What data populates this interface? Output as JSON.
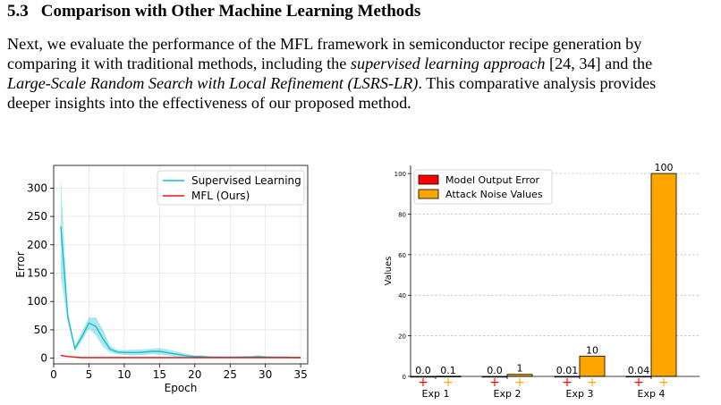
{
  "section": {
    "number": "5.3",
    "title": "Comparison with Other Machine Learning Methods"
  },
  "paragraph": {
    "line1": "Next, we evaluate the performance of the MFL framework in semiconductor recipe generation by",
    "line2_a": "comparing it with traditional methods, including the ",
    "line2_em": "supervised learning approach",
    "line2_b": " [24, 34] and the",
    "line3_em": "Large-Scale Random Search with Local Refinement (LSRS-LR)",
    "line3_b": ". This comparative analysis provides",
    "line4": "deeper insights into the effectiveness of our proposed method."
  },
  "chart_data": [
    {
      "type": "line",
      "xlabel": "Epoch",
      "ylabel": "Error",
      "xlim": [
        0,
        36
      ],
      "ylim": [
        -10,
        340
      ],
      "xticks": [
        0,
        5,
        10,
        15,
        20,
        25,
        30,
        35
      ],
      "yticks": [
        0,
        50,
        100,
        150,
        200,
        250,
        300
      ],
      "grid": true,
      "legend_position": "top-right",
      "series": [
        {
          "name": "Supervised Learning",
          "color": "#17becf",
          "x": [
            1,
            2,
            3,
            4,
            5,
            6,
            7,
            8,
            9,
            10,
            11,
            12,
            13,
            14,
            15,
            16,
            17,
            18,
            19,
            20,
            21,
            22,
            23,
            24,
            25,
            26,
            27,
            28,
            29,
            30,
            31,
            32,
            33,
            34,
            35
          ],
          "y": [
            233,
            73,
            17,
            38,
            62,
            56,
            34,
            16,
            11,
            10,
            10,
            10,
            11,
            12,
            12,
            10,
            8,
            6,
            4,
            3,
            3,
            2,
            2,
            2,
            2,
            2,
            2,
            2,
            3,
            2,
            2,
            2,
            2,
            1,
            1
          ],
          "band_upper": [
            322,
            82,
            22,
            47,
            72,
            72,
            50,
            22,
            15,
            14,
            15,
            15,
            16,
            17,
            18,
            16,
            13,
            10,
            7,
            5,
            5,
            4,
            3,
            3,
            3,
            3,
            4,
            4,
            5,
            4,
            3,
            3,
            3,
            2,
            2
          ],
          "band_lower": [
            145,
            64,
            12,
            30,
            52,
            40,
            20,
            10,
            7,
            6,
            5,
            5,
            6,
            7,
            6,
            5,
            3,
            2,
            1,
            1,
            1,
            1,
            1,
            1,
            1,
            1,
            1,
            1,
            1,
            1,
            1,
            1,
            1,
            0,
            0
          ]
        },
        {
          "name": "MFL (Ours)",
          "color": "#e8171b",
          "x": [
            1,
            2,
            3,
            4,
            5,
            6,
            7,
            8,
            9,
            10,
            11,
            12,
            13,
            14,
            15,
            16,
            17,
            18,
            19,
            20,
            21,
            22,
            23,
            24,
            25,
            26,
            27,
            28,
            29,
            30,
            31,
            32,
            33,
            34,
            35
          ],
          "y": [
            5,
            3,
            2,
            1,
            1,
            1,
            1,
            1,
            1,
            1,
            1,
            1,
            1,
            1,
            1,
            1,
            1,
            1,
            1,
            1,
            1,
            1,
            1,
            1,
            1,
            1,
            1,
            1,
            1,
            1,
            1,
            1,
            1,
            1,
            1
          ]
        }
      ]
    },
    {
      "type": "bar",
      "ylabel": "Values",
      "ylim": [
        0,
        104
      ],
      "yticks": [
        0,
        20,
        40,
        60,
        80,
        100
      ],
      "grid": true,
      "legend_position": "top-left",
      "categories": [
        "Exp 1",
        "Exp 2",
        "Exp 3",
        "Exp 4"
      ],
      "series": [
        {
          "name": "Model Output Error",
          "color": "#ff0000",
          "values": [
            0.0,
            0.0,
            0.01,
            0.04
          ],
          "labels": [
            "0.0",
            "0.0",
            "0.01",
            "0.04"
          ]
        },
        {
          "name": "Attack Noise Values",
          "color": "#ffa500",
          "values": [
            0.1,
            1,
            10,
            100
          ],
          "labels": [
            "0.1",
            "1",
            "10",
            "100"
          ]
        }
      ],
      "marker": "+"
    }
  ]
}
